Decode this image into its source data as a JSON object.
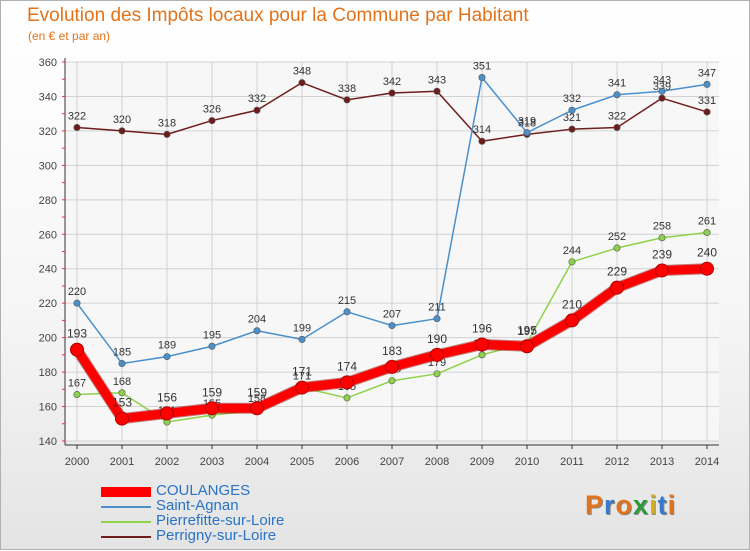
{
  "header": {
    "title": "Evolution des Impôts locaux pour la Commune par Habitant",
    "subtitle": "(en € et par an)"
  },
  "brand": {
    "text": "Proxiti",
    "colors": [
      "#e2731b",
      "#3a78c8",
      "#e2731b",
      "#2a9a3a",
      "#d4b01e",
      "#3a78c8",
      "#e2731b"
    ]
  },
  "chart_data": {
    "type": "line",
    "x": [
      2000,
      2001,
      2002,
      2003,
      2004,
      2005,
      2006,
      2007,
      2008,
      2009,
      2010,
      2011,
      2012,
      2013,
      2014
    ],
    "ylim": [
      140,
      360
    ],
    "yticks": [
      140,
      160,
      180,
      200,
      220,
      240,
      260,
      280,
      300,
      320,
      340,
      360
    ],
    "grid": true,
    "legend_position": "bottom-left",
    "series": [
      {
        "name": "Perrigny-sur-Loire",
        "color": "#6e1d1d",
        "values": [
          322,
          320,
          318,
          326,
          332,
          348,
          338,
          342,
          343,
          314,
          318,
          321,
          322,
          339,
          331
        ]
      },
      {
        "name": "Saint-Agnan",
        "color": "#4a90cc",
        "values": [
          220,
          185,
          189,
          195,
          204,
          199,
          215,
          207,
          211,
          351,
          319,
          332,
          341,
          343,
          347
        ]
      },
      {
        "name": "Pierrefitte-sur-Loire",
        "color": "#8ed14a",
        "values": [
          167,
          168,
          151,
          155,
          158,
          171,
          165,
          175,
          179,
          190,
          197,
          244,
          252,
          258,
          261
        ]
      },
      {
        "name": "COULANGES",
        "color": "#ff0000",
        "values": [
          193,
          153,
          156,
          159,
          159,
          171,
          174,
          183,
          190,
          196,
          195,
          210,
          229,
          239,
          240
        ]
      }
    ],
    "legend_order": [
      "COULANGES",
      "Saint-Agnan",
      "Pierrefitte-sur-Loire",
      "Perrigny-sur-Loire"
    ]
  }
}
